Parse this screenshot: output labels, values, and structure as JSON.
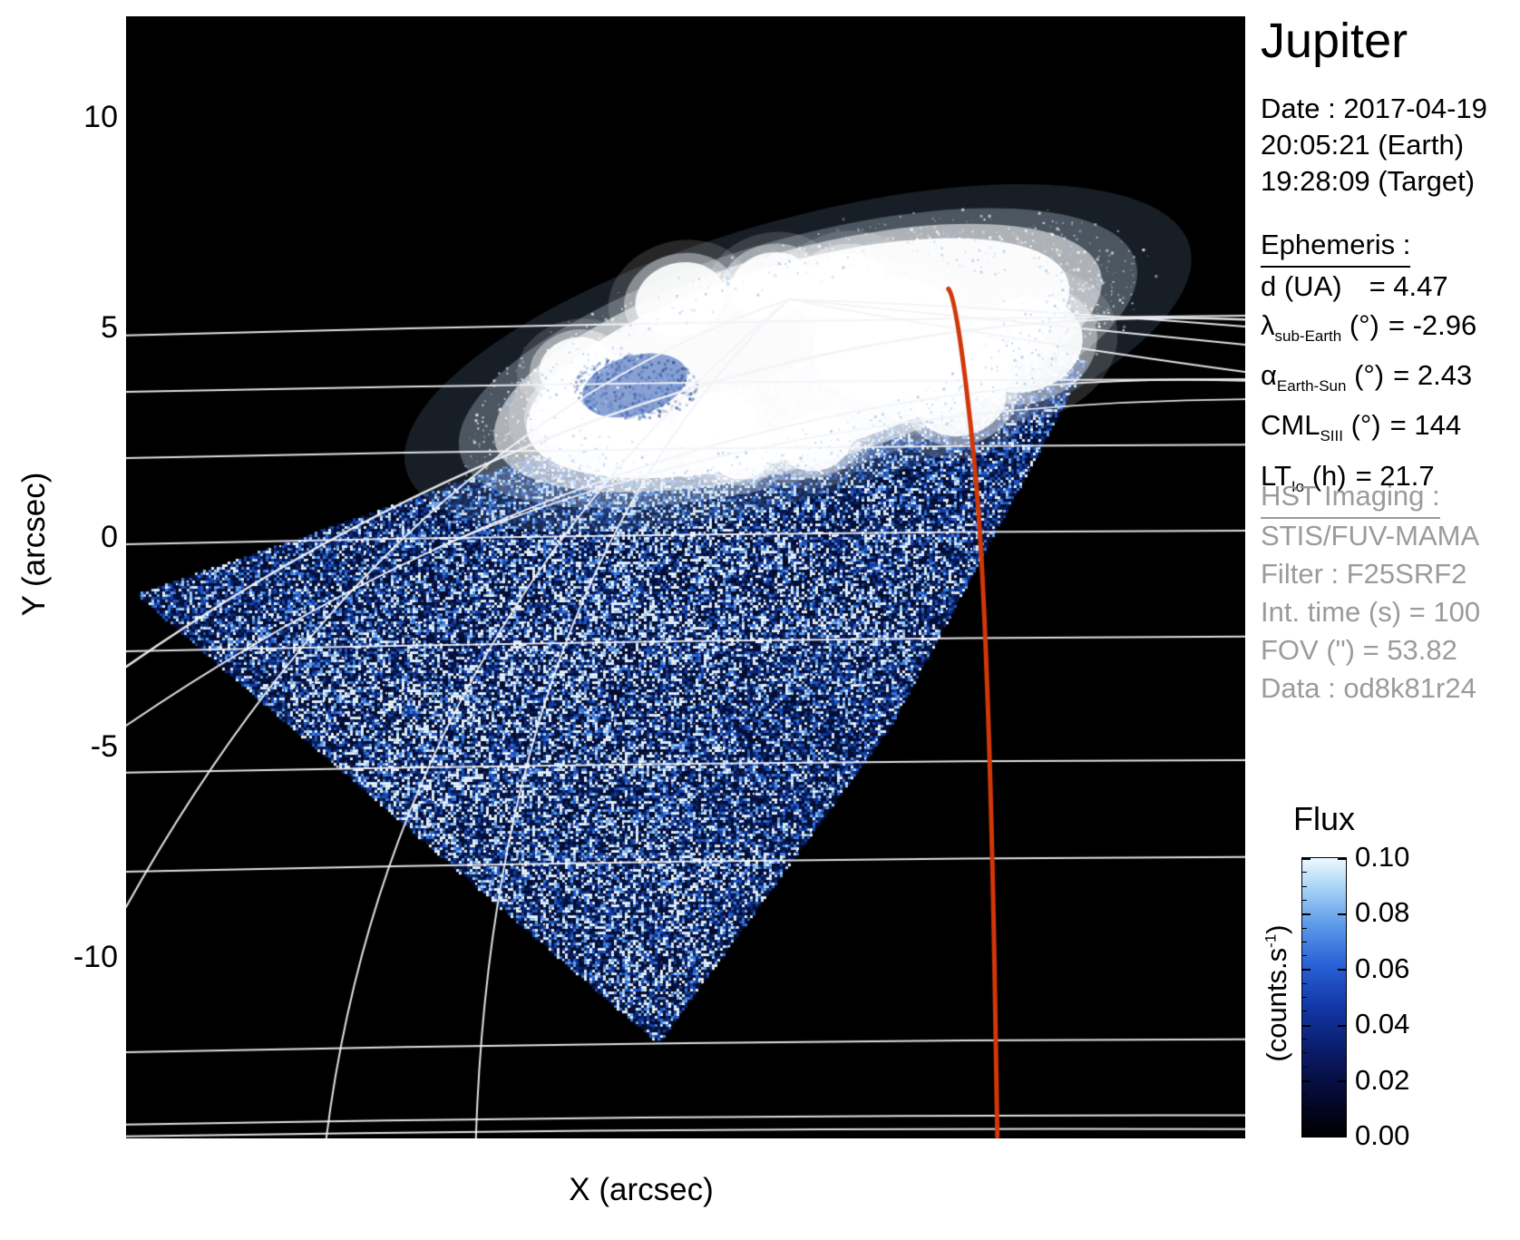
{
  "title": "Jupiter",
  "datetime": [
    "Date : 2017-04-19",
    "20:05:21 (Earth)",
    "19:28:09 (Target)"
  ],
  "ephemeris": {
    "heading": "Ephemeris :",
    "rows": [
      {
        "segs": [
          [
            "t",
            "d (UA)"
          ]
        ],
        "value": "= 4.47",
        "pad": true
      },
      {
        "segs": [
          [
            "t",
            "λ"
          ],
          [
            "sub",
            "sub-Earth"
          ],
          [
            "t",
            " (°)"
          ]
        ],
        "value": "= -2.96",
        "pad": false
      },
      {
        "segs": [
          [
            "t",
            "α"
          ],
          [
            "sub",
            "Earth-Sun"
          ],
          [
            "t",
            " (°)"
          ]
        ],
        "value": "= 2.43",
        "pad": false
      },
      {
        "segs": [
          [
            "t",
            "CML"
          ],
          [
            "sub",
            "SIII"
          ],
          [
            "t",
            " (°)"
          ]
        ],
        "value": "= 144",
        "pad": false
      },
      {
        "segs": [
          [
            "t",
            "LT"
          ],
          [
            "sub",
            "Io"
          ],
          [
            "t",
            " (h)"
          ]
        ],
        "value": "= 21.7",
        "pad": false
      }
    ]
  },
  "hst": {
    "heading": "HST Imaging :",
    "rows": [
      "STIS/FUV-MAMA",
      "Filter : F25SRF2",
      "Int. time (s) = 100",
      "FOV (\") = 53.82",
      "Data : od8k81r24"
    ],
    "text_color": "#9b9b9b"
  },
  "chart_data": {
    "type": "heatmap",
    "title": "Jupiter",
    "xlabel": "X (arcsec)",
    "ylabel": "Y (arcsec)",
    "xlim": [
      -12.49,
      14.51
    ],
    "ylim": [
      -14.3,
      12.42
    ],
    "xticks": [
      -10,
      -5,
      0,
      5,
      10
    ],
    "yticks": [
      10,
      5,
      0,
      -5,
      -10
    ],
    "grid_on": false,
    "background": "#000000",
    "graticule_color": "#f2f3f8",
    "colorbar": {
      "title": "Flux",
      "unit_pre": "(counts.s",
      "unit_sup": "-1",
      "unit_post": ")",
      "min": 0.0,
      "max": 0.1,
      "tick_labels": [
        "0.10",
        "0.08",
        "0.06",
        "0.04",
        "0.02",
        "0.00"
      ],
      "palette": [
        [
          "#000000",
          0
        ],
        [
          "#04082b",
          0.13
        ],
        [
          "#0a1a66",
          0.3
        ],
        [
          "#1238a8",
          0.47
        ],
        [
          "#2a62d8",
          0.62
        ],
        [
          "#5b9ae8",
          0.76
        ],
        [
          "#a6d2f5",
          0.89
        ],
        [
          "#eef8ff",
          1
        ]
      ]
    },
    "noise_palette": [
      "#050d33",
      "#081a55",
      "#0c2a7a",
      "#1240a8",
      "#2058cc",
      "#3b7ce2",
      "#6ba6ee",
      "#a8d2f6",
      "#e8f6ff"
    ],
    "fov_polygon": [
      [
        -12.25,
        -1.34
      ],
      [
        7.88,
        5.57
      ],
      [
        10.72,
        4.21
      ],
      [
        5.97,
        -4.47
      ],
      [
        0.35,
        -12.05
      ]
    ],
    "bright_bands": [
      {
        "c": [
          2.41,
          -1.02
        ],
        "ax": [
          7.44,
          3.46
        ],
        "w": 0.3
      },
      {
        "c": [
          -4.16,
          -5.12
        ],
        "ax": [
          7.22,
          5.62
        ],
        "w": 0.28
      },
      {
        "c": [
          0.8,
          -9.5
        ],
        "ax": [
          4.5,
          3.5
        ],
        "w": 0.25
      }
    ],
    "aurora": {
      "center": [
        3.72,
        4.28
      ],
      "a": 6.78,
      "b": 2.27,
      "rot_deg": -16,
      "blobs": [
        [
          -1.64,
          4.06,
          0.9
        ],
        [
          1.75,
          2.66,
          1.0
        ],
        [
          5.91,
          4.71,
          1.85
        ],
        [
          9.19,
          4.6,
          1.42
        ],
        [
          0.88,
          5.68,
          1.1
        ],
        [
          3.06,
          6.0,
          1.0
        ],
        [
          4.81,
          5.9,
          1.1
        ],
        [
          -1.53,
          2.98,
          1.1
        ],
        [
          -0.22,
          2.22,
          0.87
        ],
        [
          2.41,
          2.01,
          0.76
        ],
        [
          4.16,
          2.29,
          0.87
        ],
        [
          7.66,
          3.3,
          1.1
        ]
      ],
      "inner_patch": [
        -0.22,
        3.63,
        1.3
      ]
    },
    "graticule": {
      "lat_lines": [
        [
          4.82,
          5.29
        ],
        [
          3.48,
          3.78
        ],
        [
          1.9,
          2.22
        ],
        [
          -0.15,
          0.17
        ],
        [
          -2.7,
          -2.35
        ],
        [
          -5.59,
          -5.29
        ],
        [
          -7.95,
          -7.6
        ],
        [
          -12.25,
          -11.94
        ],
        [
          -13.97,
          -13.75
        ],
        [
          -14.25,
          -14.08
        ]
      ],
      "curves": [
        {
          "name": "limb",
          "p": [
            -12.49,
            -3.07
          ],
          "c": [
            0.44,
            5.79
          ],
          "q": [
            14.51,
            5.2
          ],
          "w": 2.5
        },
        {
          "name": "terminator",
          "p": [
            -12.49,
            -4.47
          ],
          "c": [
            0.44,
            4.21
          ],
          "q": [
            14.51,
            3.74
          ],
          "w": 2.0
        },
        {
          "name": "polar-arc",
          "p": [
            -5.03,
            -0.26
          ],
          "c": [
            3.06,
            3.2
          ],
          "q": [
            14.51,
            3.3
          ],
          "w": 1.8
        },
        {
          "name": "meridian-a",
          "p": [
            3.5,
            5.68
          ],
          "c": [
            -6.13,
            2.44
          ],
          "q": [
            -12.49,
            -8.79
          ],
          "w": 2.0
        },
        {
          "name": "meridian-b",
          "p": [
            3.5,
            5.68
          ],
          "c": [
            -6.13,
            -2.31
          ],
          "q": [
            -7.66,
            -14.3
          ],
          "w": 2.0
        },
        {
          "name": "meridian-c",
          "p": [
            3.5,
            5.68
          ],
          "c": [
            -3.61,
            -1.02
          ],
          "q": [
            -4.05,
            -14.3
          ],
          "w": 2.0
        },
        {
          "name": "meridian-e1",
          "p": [
            3.5,
            5.68
          ],
          "c": [
            8.53,
            5.51
          ],
          "q": [
            14.51,
            5.03
          ],
          "w": 2.0
        },
        {
          "name": "meridian-e2",
          "p": [
            3.5,
            5.68
          ],
          "c": [
            8.32,
            5.2
          ],
          "q": [
            14.51,
            4.6
          ],
          "w": 2.0
        },
        {
          "name": "meridian-e3",
          "p": [
            3.5,
            5.68
          ],
          "c": [
            8.1,
            4.82
          ],
          "q": [
            14.51,
            3.95
          ],
          "w": 2.0
        }
      ]
    },
    "cml_line": {
      "color": "#d23708",
      "points": [
        [
          7.35,
          5.93
        ],
        [
          7.51,
          5.77
        ],
        [
          8.03,
          1.58
        ],
        [
          8.25,
          -2.31
        ],
        [
          8.42,
          -7.71
        ],
        [
          8.53,
          -14.25
        ]
      ]
    }
  }
}
